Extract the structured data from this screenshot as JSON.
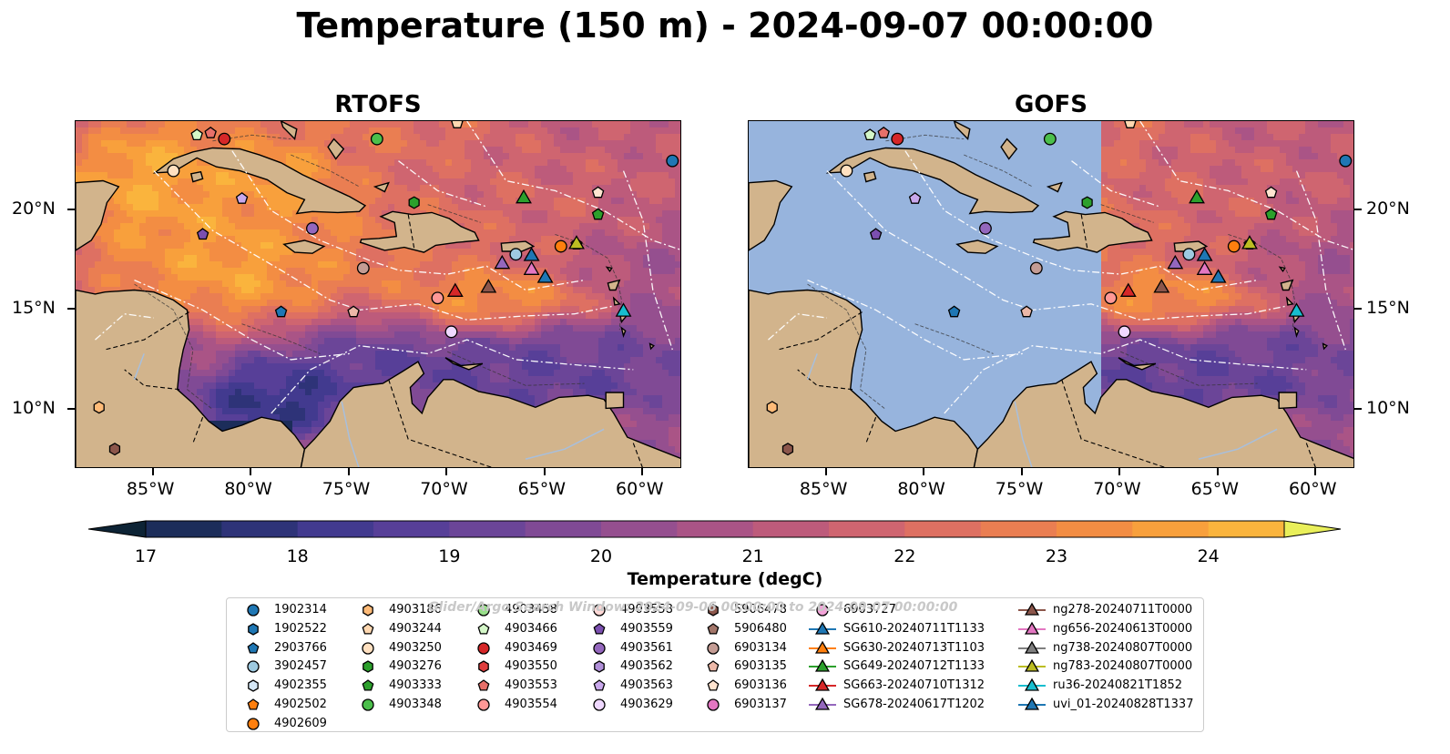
{
  "title": "Temperature (150 m) - 2024-09-07 00:00:00",
  "chart_data": {
    "type": "heatmap",
    "panels": [
      {
        "name": "RTOFS",
        "model_field": "full"
      },
      {
        "name": "GOFS",
        "model_field": "east_of_71W"
      }
    ],
    "lon_ticks": [
      "85°W",
      "80°W",
      "75°W",
      "70°W",
      "65°W",
      "60°W"
    ],
    "lat_ticks": [
      "20°N",
      "15°N",
      "10°N"
    ],
    "extent": {
      "lon": [
        -89,
        -58
      ],
      "lat": [
        7,
        24.5
      ]
    },
    "colorbar": {
      "label": "Temperature (degC)",
      "ticks": [
        "17",
        "18",
        "19",
        "20",
        "21",
        "22",
        "23",
        "24"
      ],
      "range": [
        17,
        24.5
      ],
      "step": 0.5,
      "colormap": "thermal",
      "colors": [
        "#0d2335",
        "#1c2d5a",
        "#2e3378",
        "#423a8f",
        "#573f98",
        "#6b4598",
        "#804a95",
        "#954f8f",
        "#aa5486",
        "#bd5b7b",
        "#cf6570",
        "#de7062",
        "#ea7e52",
        "#f38d43",
        "#f8a03c",
        "#fab43d",
        "#f5cb47",
        "#e9ef5a"
      ]
    },
    "coastline_contours": [
      -100,
      -1000
    ],
    "series": [
      {
        "name": "1902314",
        "marker": "circle",
        "color": "#1f77b4",
        "lon": -58.5,
        "lat": 22.5
      },
      {
        "name": "1902522",
        "marker": "hexagon",
        "color": "#1f77b4"
      },
      {
        "name": "2903766",
        "marker": "pentagon",
        "color": "#1f77b4",
        "lon": -78.5,
        "lat": 14.9
      },
      {
        "name": "3902457",
        "marker": "circle",
        "color": "#9ecae1",
        "lon": -66.5,
        "lat": 17.8
      },
      {
        "name": "4902355",
        "marker": "hexagon",
        "color": "#d6e8f7"
      },
      {
        "name": "4902502",
        "marker": "pentagon",
        "color": "#ff7f0e",
        "lon": -63.4,
        "lat": 18.3
      },
      {
        "name": "4902609",
        "marker": "circle",
        "color": "#ff7f0e",
        "lon": -64.2,
        "lat": 18.2
      },
      {
        "name": "4903186",
        "marker": "hexagon",
        "color": "#ffbb78",
        "lon": -87.8,
        "lat": 10.1
      },
      {
        "name": "4903244",
        "marker": "pentagon",
        "color": "#ffd8b1",
        "lon": -69.5,
        "lat": 24.4
      },
      {
        "name": "4903250",
        "marker": "circle",
        "color": "#ffe0c0",
        "lon": -84.0,
        "lat": 22.0
      },
      {
        "name": "4903276",
        "marker": "hexagon",
        "color": "#2ca02c",
        "lon": -71.7,
        "lat": 20.4
      },
      {
        "name": "4903333",
        "marker": "pentagon",
        "color": "#2ca02c",
        "lon": -62.3,
        "lat": 19.8
      },
      {
        "name": "4903348",
        "marker": "circle",
        "color": "#4bbf4b",
        "lon": -73.6,
        "lat": 23.6
      },
      {
        "name": "4903458",
        "marker": "circle",
        "color": "#98df8a"
      },
      {
        "name": "4903466",
        "marker": "pentagon",
        "color": "#d4f7c8",
        "lon": -82.8,
        "lat": 23.8
      },
      {
        "name": "4903469",
        "marker": "circle",
        "color": "#d62728",
        "lon": -81.4,
        "lat": 23.6
      },
      {
        "name": "4903550",
        "marker": "hexagon",
        "color": "#e03e3e"
      },
      {
        "name": "4903553",
        "marker": "pentagon",
        "color": "#e8706a",
        "lon": -82.1,
        "lat": 23.9
      },
      {
        "name": "4903554",
        "marker": "circle",
        "color": "#ff9896",
        "lon": -70.5,
        "lat": 15.6
      },
      {
        "name": "4903558",
        "marker": "circle",
        "color": "#ffd8d6"
      },
      {
        "name": "4903559",
        "marker": "pentagon",
        "color": "#7b4fb0",
        "lon": -82.5,
        "lat": 18.8
      },
      {
        "name": "4903561",
        "marker": "circle",
        "color": "#9467bd",
        "lon": -76.9,
        "lat": 19.1
      },
      {
        "name": "4903562",
        "marker": "hexagon",
        "color": "#b08fd8"
      },
      {
        "name": "4903563",
        "marker": "pentagon",
        "color": "#c9a8ec",
        "lon": -80.5,
        "lat": 20.6
      },
      {
        "name": "4903629",
        "marker": "circle",
        "color": "#efd8ff",
        "lon": -69.8,
        "lat": 13.9
      },
      {
        "name": "5906478",
        "marker": "hexagon",
        "color": "#8c564b",
        "lon": -87.0,
        "lat": 8.0
      },
      {
        "name": "5906480",
        "marker": "pentagon",
        "color": "#a3766a"
      },
      {
        "name": "6903134",
        "marker": "circle",
        "color": "#c49c94",
        "lon": -74.3,
        "lat": 17.1
      },
      {
        "name": "6903135",
        "marker": "pentagon",
        "color": "#ecb8a8",
        "lon": -74.8,
        "lat": 14.9
      },
      {
        "name": "6903136",
        "marker": "pentagon",
        "color": "#ffe4d0",
        "lon": -62.3,
        "lat": 20.9
      },
      {
        "name": "6903137",
        "marker": "circle",
        "color": "#e377c2"
      },
      {
        "name": "6903727",
        "marker": "circle",
        "color": "#f2a3d8"
      },
      {
        "name": "SG610-20240711T1133",
        "marker": "triangle",
        "color": "#1f77b4",
        "line": true,
        "lon": -65.0,
        "lat": 16.7
      },
      {
        "name": "SG630-20240713T1103",
        "marker": "triangle",
        "color": "#ff7f0e",
        "line": true
      },
      {
        "name": "SG649-20240712T1133",
        "marker": "triangle",
        "color": "#2ca02c",
        "line": true,
        "lon": -66.1,
        "lat": 20.7
      },
      {
        "name": "SG663-20240710T1312",
        "marker": "triangle",
        "color": "#d62728",
        "line": true,
        "lon": -69.6,
        "lat": 16.0
      },
      {
        "name": "SG678-20240617T1202",
        "marker": "triangle",
        "color": "#9467bd",
        "line": true,
        "lon": -67.2,
        "lat": 17.4
      },
      {
        "name": "ng278-20240711T0000",
        "marker": "triangle",
        "color": "#8c564b",
        "line": true,
        "lon": -67.9,
        "lat": 16.2
      },
      {
        "name": "ng656-20240613T0000",
        "marker": "triangle",
        "color": "#e377c2",
        "line": true,
        "lon": -65.7,
        "lat": 17.1
      },
      {
        "name": "ng738-20240807T0000",
        "marker": "triangle",
        "color": "#7f7f7f",
        "line": true
      },
      {
        "name": "ng783-20240807T0000",
        "marker": "triangle",
        "color": "#bcbd22",
        "line": true,
        "lon": -63.4,
        "lat": 18.4
      },
      {
        "name": "ru36-20240821T1852",
        "marker": "triangle",
        "color": "#17becf",
        "line": true,
        "lon": -61.0,
        "lat": 15.0
      },
      {
        "name": "uvi_01-20240828T1337",
        "marker": "triangle",
        "color": "#1f77b4",
        "line": true,
        "lon": -65.7,
        "lat": 17.8
      }
    ]
  },
  "colors": {
    "land": "#d2b48c",
    "no_data": "#97b4dd",
    "frame": "#000000"
  },
  "watermark": "Glider/Argo Search Window: 2024-09-06 00:00:00 to 2024-09-07 00:00:00"
}
